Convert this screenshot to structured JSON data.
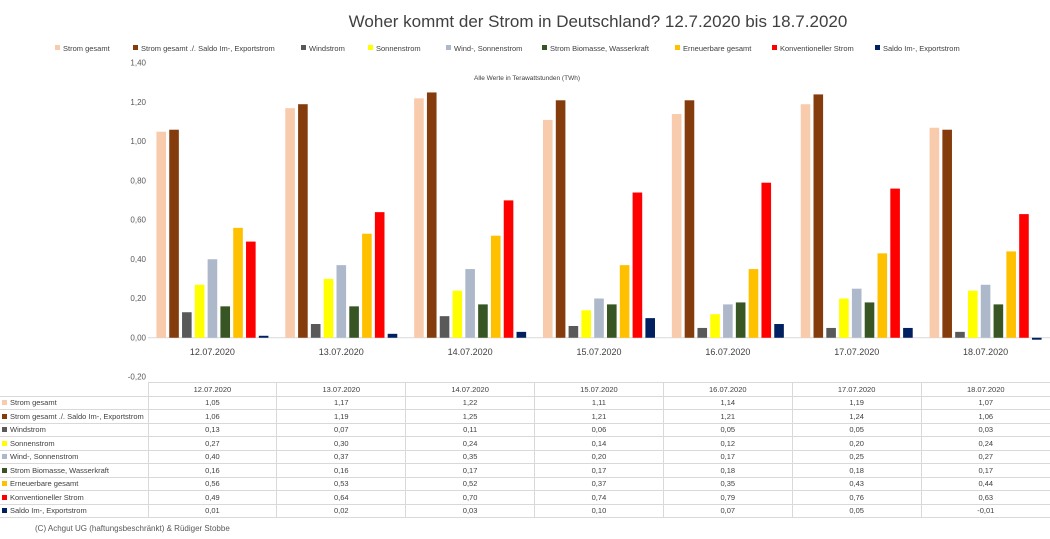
{
  "chart_data": {
    "type": "bar",
    "title": "Woher kommt der Strom in Deutschland? 12.7.2020 bis 18.7.2020",
    "annotation": "Alle Werte in Terawattstunden (TWh)",
    "categories": [
      "12.07.2020",
      "13.07.2020",
      "14.07.2020",
      "15.07.2020",
      "16.07.2020",
      "17.07.2020",
      "18.07.2020"
    ],
    "ylim": [
      -0.2,
      1.4
    ],
    "yticks": [
      "-0,20",
      "0,00",
      "0,20",
      "0,40",
      "0,60",
      "0,80",
      "1,00",
      "1,20",
      "1,40"
    ],
    "ytick_values": [
      -0.2,
      0,
      0.2,
      0.4,
      0.6,
      0.8,
      1.0,
      1.2,
      1.4
    ],
    "grid": false,
    "legend_position": "top",
    "series": [
      {
        "name": "Strom gesamt",
        "color": "#f8cbad",
        "values": [
          1.05,
          1.17,
          1.22,
          1.11,
          1.14,
          1.19,
          1.07
        ],
        "labels": [
          "1,05",
          "1,17",
          "1,22",
          "1,11",
          "1,14",
          "1,19",
          "1,07"
        ]
      },
      {
        "name": "Strom gesamt ./. Saldo Im-, Exportstrom",
        "color": "#843c0c",
        "values": [
          1.06,
          1.19,
          1.25,
          1.21,
          1.21,
          1.24,
          1.06
        ],
        "labels": [
          "1,06",
          "1,19",
          "1,25",
          "1,21",
          "1,21",
          "1,24",
          "1,06"
        ]
      },
      {
        "name": "Windstrom",
        "color": "#595959",
        "values": [
          0.13,
          0.07,
          0.11,
          0.06,
          0.05,
          0.05,
          0.03
        ],
        "labels": [
          "0,13",
          "0,07",
          "0,11",
          "0,06",
          "0,05",
          "0,05",
          "0,03"
        ]
      },
      {
        "name": "Sonnenstrom",
        "color": "#ffff00",
        "values": [
          0.27,
          0.3,
          0.24,
          0.14,
          0.12,
          0.2,
          0.24
        ],
        "labels": [
          "0,27",
          "0,30",
          "0,24",
          "0,14",
          "0,12",
          "0,20",
          "0,24"
        ]
      },
      {
        "name": "Wind-, Sonnenstrom",
        "color": "#adb9ca",
        "values": [
          0.4,
          0.37,
          0.35,
          0.2,
          0.17,
          0.25,
          0.27
        ],
        "labels": [
          "0,40",
          "0,37",
          "0,35",
          "0,20",
          "0,17",
          "0,25",
          "0,27"
        ]
      },
      {
        "name": "Strom Biomasse, Wasserkraft",
        "color": "#375623",
        "values": [
          0.16,
          0.16,
          0.17,
          0.17,
          0.18,
          0.18,
          0.17
        ],
        "labels": [
          "0,16",
          "0,16",
          "0,17",
          "0,17",
          "0,18",
          "0,18",
          "0,17"
        ]
      },
      {
        "name": "Erneuerbare gesamt",
        "color": "#ffc000",
        "values": [
          0.56,
          0.53,
          0.52,
          0.37,
          0.35,
          0.43,
          0.44
        ],
        "labels": [
          "0,56",
          "0,53",
          "0,52",
          "0,37",
          "0,35",
          "0,43",
          "0,44"
        ]
      },
      {
        "name": "Konventioneller Strom",
        "color": "#ff0000",
        "values": [
          0.49,
          0.64,
          0.7,
          0.74,
          0.79,
          0.76,
          0.63
        ],
        "labels": [
          "0,49",
          "0,64",
          "0,70",
          "0,74",
          "0,79",
          "0,76",
          "0,63"
        ]
      },
      {
        "name": "Saldo Im-, Exportstrom",
        "color": "#002060",
        "values": [
          0.01,
          0.02,
          0.03,
          0.1,
          0.07,
          0.05,
          -0.01
        ],
        "labels": [
          "0,01",
          "0,02",
          "0,03",
          "0,10",
          "0,07",
          "0,05",
          "-0,01"
        ]
      }
    ]
  },
  "footer": {
    "copyright": "(C) Achgut UG (haftungsbeschränkt) & Rüdiger Stobbe"
  }
}
